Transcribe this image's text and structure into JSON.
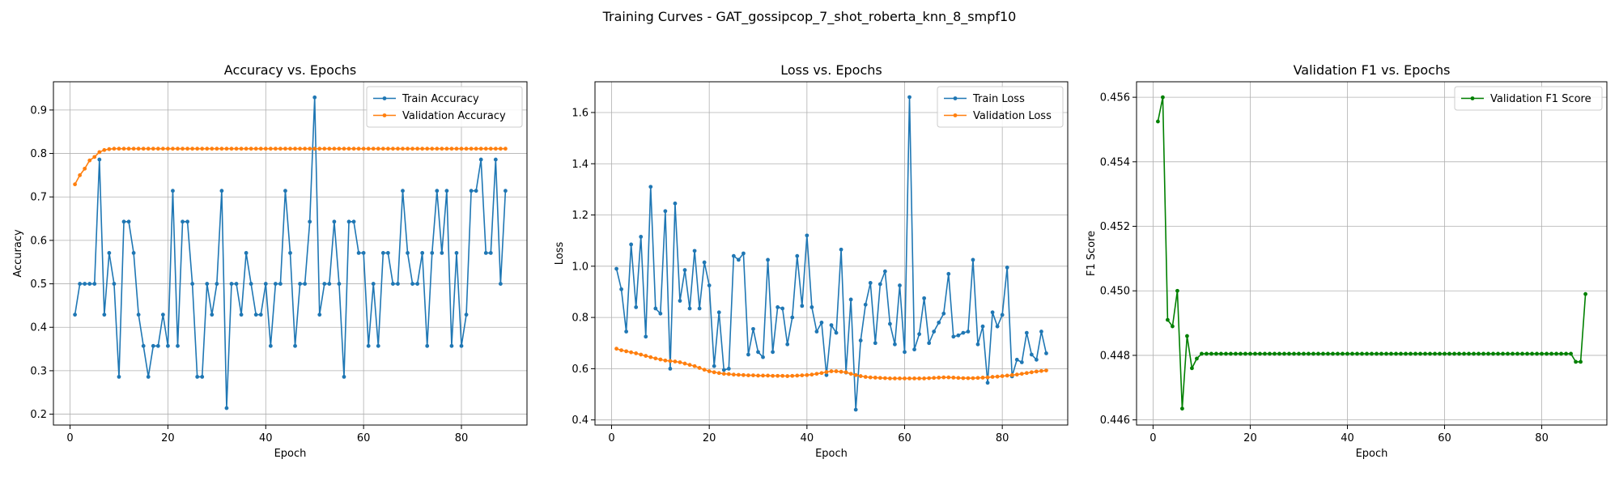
{
  "figure": {
    "suptitle": "Training Curves - GAT_gossipcop_7_shot_roberta_knn_8_smpf10"
  },
  "colors": {
    "blue": "#1f77b4",
    "orange": "#ff7f0e",
    "green": "#008000",
    "grid": "#b0b0b0",
    "axis": "#000000"
  },
  "chart_data": [
    {
      "type": "line",
      "title": "Accuracy vs. Epochs",
      "xlabel": "Epoch",
      "ylabel": "Accuracy",
      "xlim": [
        -3.4,
        93.4
      ],
      "ylim": [
        0.175,
        0.965
      ],
      "xticks": [
        0,
        20,
        40,
        60,
        80
      ],
      "xtick_labels": [
        "0",
        "20",
        "40",
        "60",
        "80"
      ],
      "yticks": [
        0.2,
        0.3,
        0.4,
        0.5,
        0.6,
        0.7,
        0.8,
        0.9
      ],
      "ytick_labels": [
        "0.2",
        "0.3",
        "0.4",
        "0.5",
        "0.6",
        "0.7",
        "0.8",
        "0.9"
      ],
      "grid": true,
      "legend_position": "top-right",
      "x_start": 1,
      "series": [
        {
          "name": "Train Accuracy",
          "color": "#1f77b4",
          "values": [
            0.429,
            0.5,
            0.5,
            0.5,
            0.5,
            0.786,
            0.429,
            0.571,
            0.5,
            0.286,
            0.643,
            0.643,
            0.571,
            0.429,
            0.357,
            0.286,
            0.357,
            0.357,
            0.429,
            0.357,
            0.714,
            0.357,
            0.643,
            0.643,
            0.5,
            0.286,
            0.286,
            0.5,
            0.429,
            0.5,
            0.714,
            0.214,
            0.5,
            0.5,
            0.429,
            0.571,
            0.5,
            0.429,
            0.429,
            0.5,
            0.357,
            0.5,
            0.5,
            0.714,
            0.571,
            0.357,
            0.5,
            0.5,
            0.643,
            0.929,
            0.429,
            0.5,
            0.5,
            0.643,
            0.5,
            0.286,
            0.643,
            0.643,
            0.571,
            0.571,
            0.357,
            0.5,
            0.357,
            0.571,
            0.571,
            0.5,
            0.5,
            0.714,
            0.571,
            0.5,
            0.5,
            0.571,
            0.357,
            0.571,
            0.714,
            0.571,
            0.714,
            0.357,
            0.571,
            0.357,
            0.429,
            0.714,
            0.714,
            0.786,
            0.571,
            0.571,
            0.786,
            0.5,
            0.714
          ]
        },
        {
          "name": "Validation Accuracy",
          "color": "#ff7f0e",
          "values": [
            0.729,
            0.75,
            0.765,
            0.784,
            0.792,
            0.803,
            0.808,
            0.81,
            0.811,
            0.811,
            0.811,
            0.811,
            0.811,
            0.811,
            0.811,
            0.811,
            0.811,
            0.811,
            0.811,
            0.811,
            0.811,
            0.811,
            0.811,
            0.811,
            0.811,
            0.811,
            0.811,
            0.811,
            0.811,
            0.811,
            0.811,
            0.811,
            0.811,
            0.811,
            0.811,
            0.811,
            0.811,
            0.811,
            0.811,
            0.811,
            0.811,
            0.811,
            0.811,
            0.811,
            0.811,
            0.811,
            0.811,
            0.811,
            0.811,
            0.811,
            0.811,
            0.811,
            0.811,
            0.811,
            0.811,
            0.811,
            0.811,
            0.811,
            0.811,
            0.811,
            0.811,
            0.811,
            0.811,
            0.811,
            0.811,
            0.811,
            0.811,
            0.811,
            0.811,
            0.811,
            0.811,
            0.811,
            0.811,
            0.811,
            0.811,
            0.811,
            0.811,
            0.811,
            0.811,
            0.811,
            0.811,
            0.811,
            0.811,
            0.811,
            0.811,
            0.811,
            0.811,
            0.811,
            0.811
          ]
        }
      ]
    },
    {
      "type": "line",
      "title": "Loss vs. Epochs",
      "xlabel": "Epoch",
      "ylabel": "Loss",
      "xlim": [
        -3.4,
        93.4
      ],
      "ylim": [
        0.38,
        1.72
      ],
      "xticks": [
        0,
        20,
        40,
        60,
        80
      ],
      "xtick_labels": [
        "0",
        "20",
        "40",
        "60",
        "80"
      ],
      "yticks": [
        0.4,
        0.6,
        0.8,
        1.0,
        1.2,
        1.4,
        1.6
      ],
      "ytick_labels": [
        "0.4",
        "0.6",
        "0.8",
        "1.0",
        "1.2",
        "1.4",
        "1.6"
      ],
      "grid": true,
      "legend_position": "top-right",
      "x_start": 1,
      "series": [
        {
          "name": "Train Loss",
          "color": "#1f77b4",
          "values": [
            0.99,
            0.91,
            0.745,
            1.085,
            0.84,
            1.115,
            0.725,
            1.31,
            0.835,
            0.815,
            1.215,
            0.6,
            1.245,
            0.865,
            0.985,
            0.835,
            1.06,
            0.835,
            1.015,
            0.925,
            0.61,
            0.82,
            0.595,
            0.6,
            1.04,
            1.025,
            1.05,
            0.655,
            0.755,
            0.665,
            0.645,
            1.025,
            0.665,
            0.84,
            0.835,
            0.695,
            0.8,
            1.04,
            0.845,
            1.12,
            0.84,
            0.745,
            0.78,
            0.575,
            0.77,
            0.74,
            1.065,
            0.585,
            0.87,
            0.44,
            0.71,
            0.85,
            0.935,
            0.7,
            0.93,
            0.98,
            0.775,
            0.695,
            0.925,
            0.665,
            1.66,
            0.675,
            0.735,
            0.875,
            0.7,
            0.745,
            0.78,
            0.815,
            0.97,
            0.725,
            0.73,
            0.74,
            0.745,
            1.025,
            0.695,
            0.765,
            0.545,
            0.82,
            0.765,
            0.81,
            0.995,
            0.57,
            0.635,
            0.625,
            0.74,
            0.655,
            0.635,
            0.745,
            0.66
          ]
        },
        {
          "name": "Validation Loss",
          "color": "#ff7f0e",
          "values": [
            0.678,
            0.672,
            0.668,
            0.664,
            0.66,
            0.655,
            0.65,
            0.645,
            0.64,
            0.636,
            0.632,
            0.63,
            0.628,
            0.625,
            0.62,
            0.615,
            0.61,
            0.603,
            0.596,
            0.59,
            0.586,
            0.583,
            0.58,
            0.579,
            0.577,
            0.576,
            0.575,
            0.574,
            0.574,
            0.573,
            0.573,
            0.573,
            0.572,
            0.572,
            0.572,
            0.571,
            0.572,
            0.573,
            0.574,
            0.575,
            0.577,
            0.58,
            0.583,
            0.587,
            0.59,
            0.59,
            0.588,
            0.586,
            0.58,
            0.575,
            0.571,
            0.568,
            0.566,
            0.565,
            0.564,
            0.563,
            0.562,
            0.562,
            0.562,
            0.562,
            0.562,
            0.562,
            0.562,
            0.562,
            0.563,
            0.564,
            0.565,
            0.566,
            0.566,
            0.565,
            0.564,
            0.563,
            0.563,
            0.563,
            0.564,
            0.565,
            0.566,
            0.568,
            0.569,
            0.571,
            0.573,
            0.575,
            0.577,
            0.58,
            0.583,
            0.586,
            0.589,
            0.591,
            0.593
          ]
        }
      ]
    },
    {
      "type": "line",
      "title": "Validation F1 vs. Epochs",
      "xlabel": "Epoch",
      "ylabel": "F1 Score",
      "xlim": [
        -3.4,
        93.4
      ],
      "ylim": [
        0.44584,
        0.45648
      ],
      "xticks": [
        0,
        20,
        40,
        60,
        80
      ],
      "xtick_labels": [
        "0",
        "20",
        "40",
        "60",
        "80"
      ],
      "yticks": [
        0.446,
        0.448,
        0.45,
        0.452,
        0.454,
        0.456
      ],
      "ytick_labels": [
        "0.446",
        "0.448",
        "0.450",
        "0.452",
        "0.454",
        "0.456"
      ],
      "grid": true,
      "legend_position": "top-right",
      "x_start": 1,
      "series": [
        {
          "name": "Validation F1 Score",
          "color": "#008000",
          "values": [
            0.45525,
            0.456,
            0.4491,
            0.4489,
            0.45,
            0.44635,
            0.4486,
            0.4476,
            0.4479,
            0.44805,
            0.44805,
            0.44805,
            0.44805,
            0.44805,
            0.44805,
            0.44805,
            0.44805,
            0.44805,
            0.44805,
            0.44805,
            0.44805,
            0.44805,
            0.44805,
            0.44805,
            0.44805,
            0.44805,
            0.44805,
            0.44805,
            0.44805,
            0.44805,
            0.44805,
            0.44805,
            0.44805,
            0.44805,
            0.44805,
            0.44805,
            0.44805,
            0.44805,
            0.44805,
            0.44805,
            0.44805,
            0.44805,
            0.44805,
            0.44805,
            0.44805,
            0.44805,
            0.44805,
            0.44805,
            0.44805,
            0.44805,
            0.44805,
            0.44805,
            0.44805,
            0.44805,
            0.44805,
            0.44805,
            0.44805,
            0.44805,
            0.44805,
            0.44805,
            0.44805,
            0.44805,
            0.44805,
            0.44805,
            0.44805,
            0.44805,
            0.44805,
            0.44805,
            0.44805,
            0.44805,
            0.44805,
            0.44805,
            0.44805,
            0.44805,
            0.44805,
            0.44805,
            0.44805,
            0.44805,
            0.44805,
            0.44805,
            0.44805,
            0.44805,
            0.44805,
            0.44805,
            0.44805,
            0.44805,
            0.4478,
            0.4478,
            0.4499
          ]
        }
      ]
    }
  ]
}
